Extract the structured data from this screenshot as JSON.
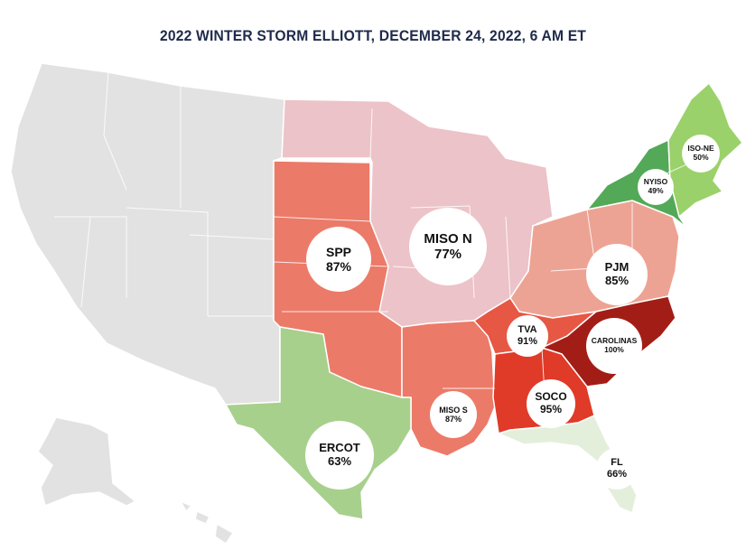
{
  "title": "2022 WINTER STORM ELLIOTT, DECEMBER 24, 2022, 6 AM ET",
  "regions": {
    "spp": {
      "name": "SPP",
      "value": "87%",
      "color": "#ec7a68"
    },
    "miso_n": {
      "name": "MISO N",
      "value": "77%",
      "color": "#ecc3c8"
    },
    "miso_s": {
      "name": "MISO S",
      "value": "87%",
      "color": "#ec7a68"
    },
    "pjm": {
      "name": "PJM",
      "value": "85%",
      "color": "#eda393"
    },
    "tva": {
      "name": "TVA",
      "value": "91%",
      "color": "#e65744"
    },
    "carolinas": {
      "name": "CAROLINAS",
      "value": "100%",
      "color": "#a31d17"
    },
    "soco": {
      "name": "SOCO",
      "value": "95%",
      "color": "#e03a28"
    },
    "fl": {
      "name": "FL",
      "value": "66%",
      "color": "#e4efdb"
    },
    "ercot": {
      "name": "ERCOT",
      "value": "63%",
      "color": "#a8d08d"
    },
    "nyiso": {
      "name": "NYISO",
      "value": "49%",
      "color": "#53a957"
    },
    "iso_ne": {
      "name": "ISO-NE",
      "value": "50%",
      "color": "#9bd16a"
    }
  },
  "base_color": "#e2e2e2",
  "title_color": "#1f2a4a"
}
